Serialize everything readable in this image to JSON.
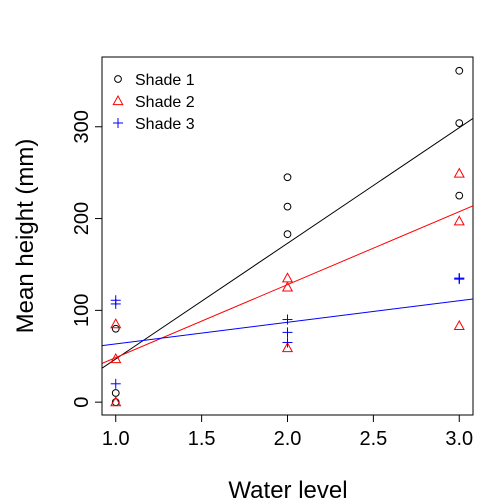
{
  "chart_data": {
    "type": "scatter",
    "title": "",
    "xlabel": "Water level",
    "ylabel": "Mean height (mm)",
    "xlim": [
      0.92,
      3.08
    ],
    "ylim": [
      -14,
      376
    ],
    "x_ticks": [
      1.0,
      1.5,
      2.0,
      2.5,
      3.0
    ],
    "x_tick_labels": [
      "1.0",
      "1.5",
      "2.0",
      "2.5",
      "3.0"
    ],
    "y_ticks": [
      0,
      100,
      200,
      300
    ],
    "y_tick_labels": [
      "0",
      "100",
      "200",
      "300"
    ],
    "grid": false,
    "legend_position": "top-left",
    "series": [
      {
        "name": "Shade 1",
        "color": "#000000",
        "marker": "circle",
        "points": [
          [
            1,
            0
          ],
          [
            1,
            10
          ],
          [
            1,
            80
          ],
          [
            2,
            183
          ],
          [
            2,
            213
          ],
          [
            2,
            245
          ],
          [
            3,
            225
          ],
          [
            3,
            304
          ],
          [
            3,
            361
          ]
        ],
        "fit": {
          "intercept": -79,
          "slope": 126
        }
      },
      {
        "name": "Shade 2",
        "color": "#ff0000",
        "marker": "triangle",
        "points": [
          [
            1,
            0
          ],
          [
            1,
            47
          ],
          [
            1,
            85
          ],
          [
            2,
            59
          ],
          [
            2,
            125
          ],
          [
            2,
            135
          ],
          [
            3,
            83
          ],
          [
            3,
            197
          ],
          [
            3,
            249
          ]
        ],
        "fit": {
          "intercept": -31,
          "slope": 79.5
        }
      },
      {
        "name": "Shade 3",
        "color": "#0000ff",
        "marker": "plus",
        "points": [
          [
            1,
            20
          ],
          [
            1,
            107
          ],
          [
            1,
            111
          ],
          [
            2,
            65
          ],
          [
            2,
            76
          ],
          [
            2,
            90
          ],
          [
            3,
            134
          ],
          [
            3,
            135
          ],
          [
            3,
            135
          ]
        ],
        "fit": {
          "intercept": 40,
          "slope": 23.5
        }
      }
    ]
  }
}
